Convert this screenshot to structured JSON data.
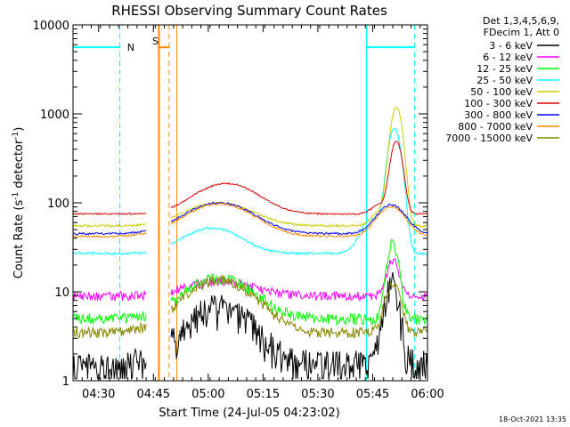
{
  "chart_data": {
    "type": "line",
    "title": "RHESSI Observing Summary Count Rates",
    "xlabel": "Start Time (24-Jul-05 04:23:02)",
    "ylabel_main": "Count Rate (s",
    "ylabel_sup1": "-1",
    "ylabel_mid": " detector",
    "ylabel_sup2": "-1",
    "ylabel_end": ")",
    "y_scale": "log",
    "ylim": [
      1,
      10000
    ],
    "xlim_minutes": [
      0,
      97
    ],
    "x_ticks": [
      {
        "label": "04:30",
        "minute": 7
      },
      {
        "label": "04:45",
        "minute": 22
      },
      {
        "label": "05:00",
        "minute": 37
      },
      {
        "label": "05:15",
        "minute": 52
      },
      {
        "label": "05:30",
        "minute": 67
      },
      {
        "label": "05:45",
        "minute": 82
      },
      {
        "label": "06:00",
        "minute": 97
      }
    ],
    "y_ticks": [
      {
        "label": "1",
        "value": 1
      },
      {
        "label": "10",
        "value": 10
      },
      {
        "label": "100",
        "value": 100
      },
      {
        "label": "1000",
        "value": 1000
      },
      {
        "label": "10000",
        "value": 10000
      }
    ],
    "legend_header": [
      "Det 1,3,4,5,6,9,",
      "FDecim 1, Att 0"
    ],
    "series": [
      {
        "name": "3 - 6 keV",
        "color": "#000000"
      },
      {
        "name": "6 - 12 keV",
        "color": "#ff00ff"
      },
      {
        "name": "12 - 25 keV",
        "color": "#00ff00"
      },
      {
        "name": "25 - 50 keV",
        "color": "#00ffff"
      },
      {
        "name": "50 - 100 keV",
        "color": "#cccc00"
      },
      {
        "name": "100 - 300 keV",
        "color": "#dd0000"
      },
      {
        "name": "300 - 800 keV",
        "color": "#0000ff"
      },
      {
        "name": "800 - 7000 keV",
        "color": "#ff8800"
      },
      {
        "name": "7000 - 15000 keV",
        "color": "#888800"
      }
    ],
    "annotations": {
      "night_label": "N",
      "saa_label": "S",
      "night_color": "#00ffff",
      "saa_color": "#ff8800"
    },
    "footer_date": "18-Oct-2021 13:35"
  }
}
